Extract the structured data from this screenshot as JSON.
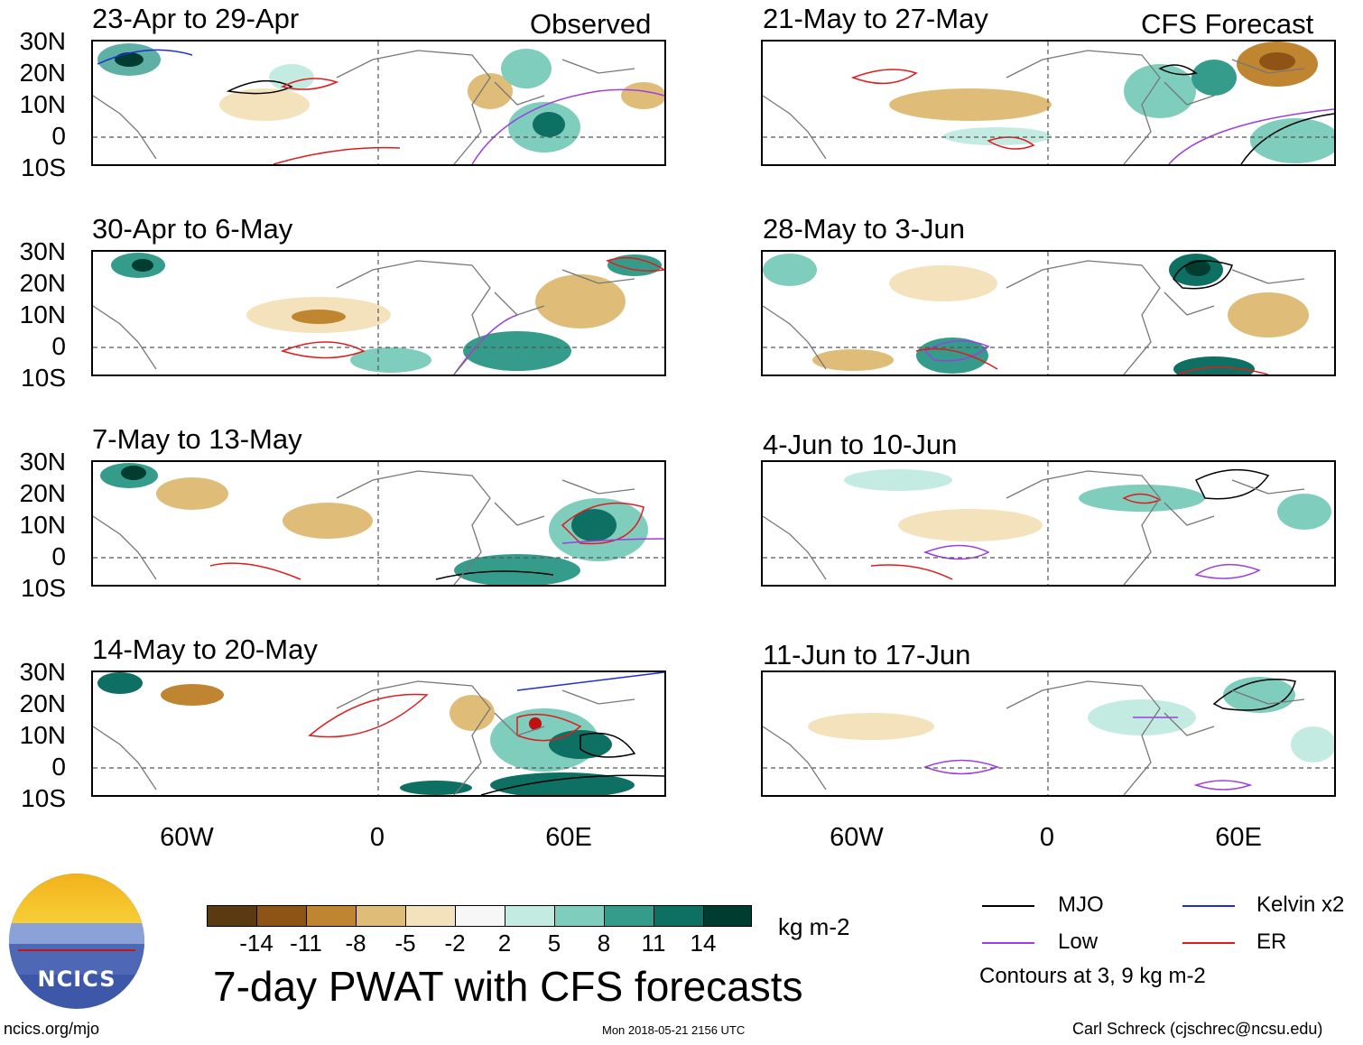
{
  "main_title": "7-day PWAT with CFS forecasts",
  "observed_label": "Observed",
  "forecast_label": "CFS Forecast",
  "panels_left": [
    "23-Apr to 29-Apr",
    "30-Apr to 6-May",
    "7-May to 13-May",
    "14-May to 20-May"
  ],
  "panels_right": [
    "21-May to 27-May",
    "28-May to 3-Jun",
    "4-Jun to 10-Jun",
    "11-Jun to 17-Jun"
  ],
  "lat_labels": [
    "30N",
    "20N",
    "10N",
    "0",
    "10S"
  ],
  "lon_labels": [
    "60W",
    "0",
    "60E"
  ],
  "colorbar": {
    "ticks": [
      "-14",
      "-11",
      "-8",
      "-5",
      "-2",
      "2",
      "5",
      "8",
      "11",
      "14"
    ],
    "units": "kg m-2",
    "colors": [
      "#5a3a10",
      "#8e5415",
      "#c08531",
      "#dfbd78",
      "#f3e2bb",
      "#f7f7f7",
      "#c4ebe2",
      "#7fcdbd",
      "#359c8c",
      "#0e6f63",
      "#003c30"
    ]
  },
  "legend": {
    "items": [
      {
        "label": "MJO",
        "color": "#000000"
      },
      {
        "label": "Kelvin x2",
        "color": "#1f2fd0"
      },
      {
        "label": "Low",
        "color": "#9b3fe0"
      },
      {
        "label": "ER",
        "color": "#e01b1b"
      }
    ],
    "note": "Contours at 3, 9 kg m-2"
  },
  "footer": {
    "url": "ncics.org/mjo",
    "timestamp": "Mon 2018-05-21 2156 UTC",
    "author": "Carl Schreck (cjschrec@ncsu.edu)"
  },
  "logo_text": "NCICS"
}
